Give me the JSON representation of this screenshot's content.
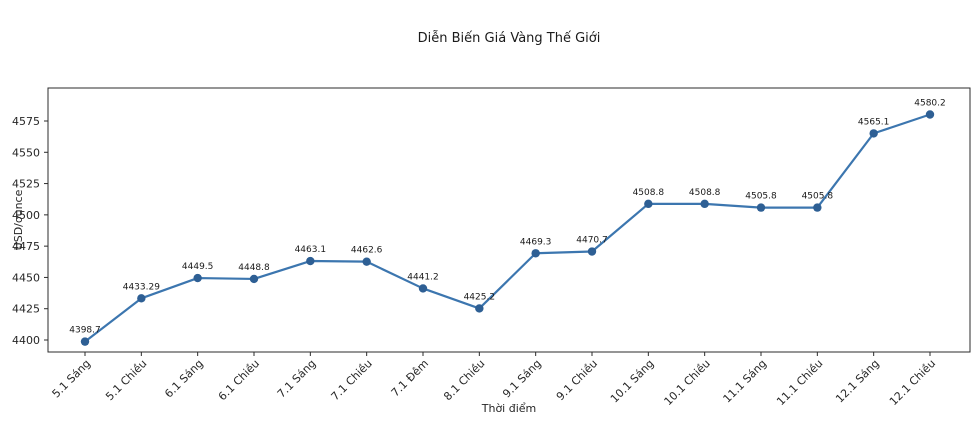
{
  "chart_data": {
    "type": "line",
    "title": "Diễn Biến Giá Vàng Thế Giới",
    "xlabel": "Thời điểm",
    "ylabel": "USD/ounce",
    "categories": [
      "5.1 Sáng",
      "5.1 Chiều",
      "6.1 Sáng",
      "6.1 Chiều",
      "7.1 Sáng",
      "7.1 Chiều",
      "7.1 Đêm",
      "8.1 Chiều",
      "9.1 Sáng",
      "9.1 Chiều",
      "10.1 Sáng",
      "10.1 Chiều",
      "11.1 Sáng",
      "11.1 Chiều",
      "12.1 Sáng",
      "12.1 Chiều"
    ],
    "series": [
      {
        "name": "Giá vàng thế giới",
        "values": [
          4398.7,
          4433.29,
          4449.5,
          4448.8,
          4463.1,
          4462.6,
          4441.2,
          4425.2,
          4469.3,
          4470.7,
          4508.8,
          4508.8,
          4505.8,
          4505.8,
          4565.1,
          4580.2
        ]
      }
    ],
    "point_labels": [
      "4398.7",
      "4433.29",
      "4449.5",
      "4448.8",
      "4463.1",
      "4462.6",
      "4441.2",
      "4425.2",
      "4469.3",
      "4470.7",
      "4508.8",
      "4508.8",
      "4505.8",
      "4505.8",
      "4565.1",
      "4580.2"
    ],
    "y_ticks": [
      4400,
      4425,
      4450,
      4475,
      4500,
      4525,
      4550,
      4575
    ],
    "ylim": [
      4390,
      4590
    ],
    "grid": false,
    "legend_position": "none",
    "line_color": "#3c76af",
    "marker_color": "#2e5f94",
    "spine_color": "#2b2b2b"
  }
}
